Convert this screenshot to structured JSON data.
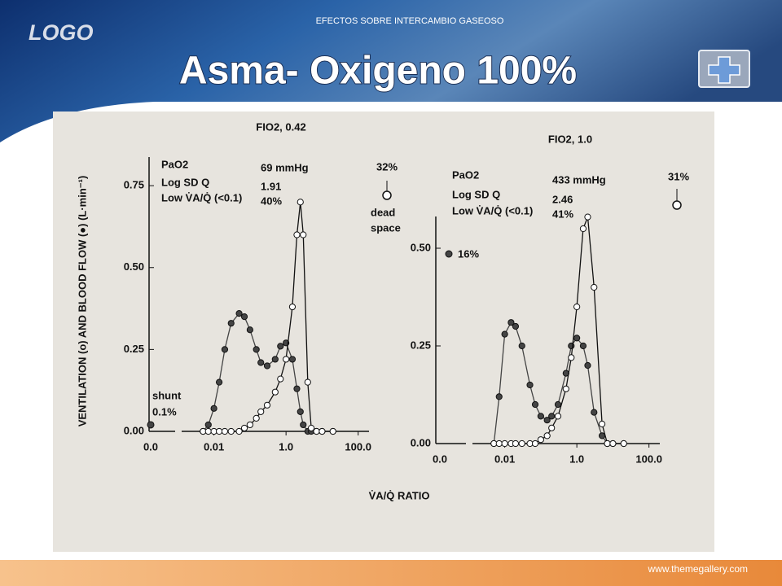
{
  "header": {
    "logo": "LOGO",
    "subtitle": "EFECTOS SOBRE INTERCAMBIO GASEOSO",
    "title": "Asma- Oxigeno 100%"
  },
  "footer": {
    "url": "www.themegallery.com"
  },
  "ylabel": "VENTILATION (o) AND BLOOD FLOW (●) (L·min⁻¹)",
  "xlabel": "V̇A/Q̇ RATIO",
  "chart_data": [
    {
      "type": "line",
      "title": "FIO2, 0.42",
      "xlog": true,
      "xlim": [
        0.004,
        200
      ],
      "xticks": [
        0.01,
        {
          "value": 1,
          "label": "1.0"
        },
        {
          "value": 100,
          "label": "100.0"
        }
      ],
      "x_break_label": "0.0",
      "shunt_value": 0.02,
      "ylim": [
        0,
        0.8
      ],
      "yticks": [
        {
          "value": 0,
          "label": "0.00"
        },
        0.25,
        {
          "value": 0.5,
          "label": "0.50"
        },
        0.75
      ],
      "x": [
        0.005,
        0.007,
        0.01,
        0.014,
        0.02,
        0.03,
        0.05,
        0.07,
        0.1,
        0.15,
        0.2,
        0.3,
        0.5,
        0.7,
        1,
        1.5,
        2,
        2.5,
        3,
        4,
        5,
        7,
        10,
        20
      ],
      "series": [
        {
          "marker": "filled",
          "color": "#444444",
          "values": [
            0,
            0.02,
            0.07,
            0.15,
            0.25,
            0.33,
            0.36,
            0.35,
            0.31,
            0.25,
            0.21,
            0.2,
            0.22,
            0.26,
            0.27,
            0.22,
            0.13,
            0.06,
            0.02,
            0,
            0,
            0,
            0,
            0
          ]
        },
        {
          "marker": "open",
          "color": "#111111",
          "values": [
            0,
            0,
            0,
            0,
            0,
            0,
            0,
            0.01,
            0.02,
            0.04,
            0.06,
            0.08,
            0.12,
            0.16,
            0.22,
            0.38,
            0.6,
            0.7,
            0.6,
            0.15,
            0.01,
            0,
            0,
            0
          ]
        }
      ],
      "annotations": [
        "PaO2",
        "Log SD Q",
        "Low V̇A/Q̇ (<0.1)",
        "69 mmHg",
        "1.91",
        "40%",
        "32%",
        "dead",
        "space",
        "shunt",
        "0.1%"
      ]
    },
    {
      "type": "line",
      "title": "FIO2, 1.0",
      "xlog": true,
      "xlim": [
        0.004,
        200
      ],
      "xticks": [
        0.01,
        {
          "value": 1,
          "label": "1.0"
        },
        {
          "value": 100,
          "label": "100.0"
        }
      ],
      "x_break_label": "0.0",
      "ylim": [
        0,
        0.55
      ],
      "yticks": [
        {
          "value": 0,
          "label": "0.00"
        },
        0.25,
        {
          "value": 0.5,
          "label": "0.50"
        }
      ],
      "x": [
        0.005,
        0.007,
        0.01,
        0.015,
        0.02,
        0.03,
        0.05,
        0.07,
        0.1,
        0.15,
        0.2,
        0.3,
        0.5,
        0.7,
        1,
        1.5,
        2,
        3,
        5,
        7,
        10,
        20
      ],
      "series": [
        {
          "marker": "filled",
          "color": "#444444",
          "values": [
            0,
            0.12,
            0.28,
            0.31,
            0.3,
            0.25,
            0.15,
            0.1,
            0.07,
            0.06,
            0.07,
            0.1,
            0.18,
            0.25,
            0.27,
            0.25,
            0.2,
            0.08,
            0.02,
            0,
            0,
            0
          ]
        },
        {
          "marker": "open",
          "color": "#111111",
          "values": [
            0,
            0,
            0,
            0,
            0,
            0,
            0,
            0,
            0.01,
            0.02,
            0.04,
            0.07,
            0.14,
            0.22,
            0.35,
            0.55,
            0.58,
            0.4,
            0.05,
            0,
            0,
            0
          ]
        }
      ],
      "annotations": [
        "PaO2",
        "Log SD Q",
        "Low V̇A/Q̇ (<0.1)",
        "433 mmHg",
        "2.46",
        "41%",
        "31%",
        "16%"
      ]
    }
  ]
}
